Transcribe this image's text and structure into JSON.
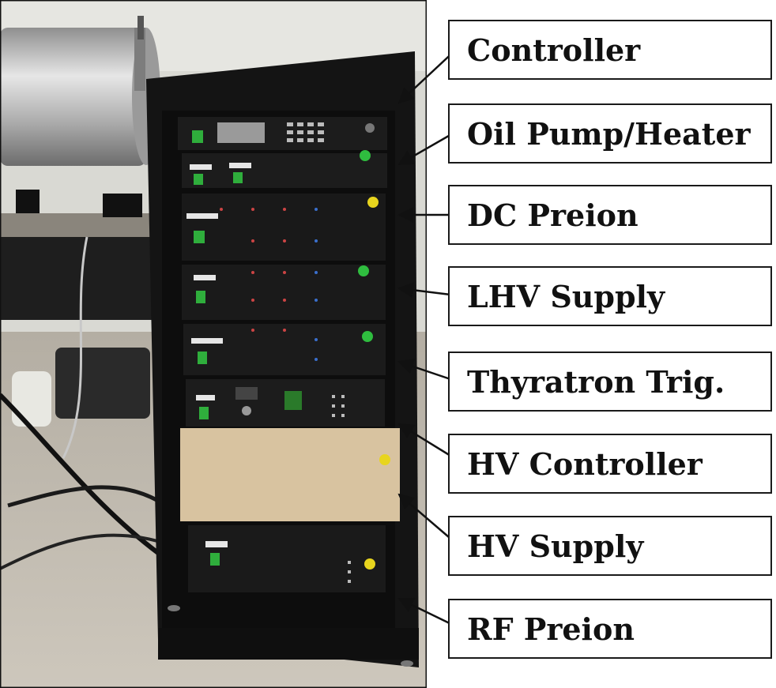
{
  "labels": [
    "Controller",
    "Oil Pump/Heater",
    "DC Preion",
    "LHV Supply",
    "Thyratron Trig.",
    "HV Controller",
    "HV Supply",
    "RF Preion"
  ],
  "colors": {
    "rack": "#141414",
    "panel": "#1c1c1c",
    "blank_panel": "#d8c3a0",
    "floor": "#bdb6aa",
    "wall": "#dcdcd6",
    "green_button": "#2fae3c",
    "yellow_button": "#e8d51e"
  }
}
